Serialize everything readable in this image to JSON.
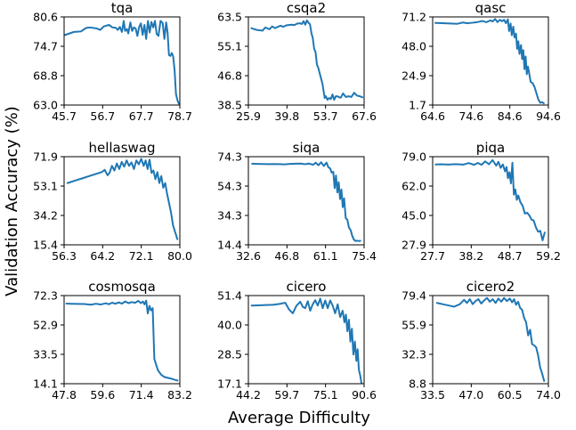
{
  "figure": {
    "xlabel": "Average Difficulty",
    "ylabel": "Validation Accuracy (%)",
    "line_color": "#1f77b4"
  },
  "chart_data": [
    {
      "type": "line",
      "title": "tqa",
      "xticks": [
        "45.7",
        "56.7",
        "67.7",
        "78.7"
      ],
      "xlim": [
        45.7,
        78.7
      ],
      "yticks": [
        "63.0",
        "68.8",
        "74.7",
        "80.6"
      ],
      "ylim": [
        63.0,
        80.6
      ],
      "x": [
        46.0,
        48.5,
        50.5,
        52.0,
        53.0,
        54.0,
        55.0,
        56.0,
        57.0,
        58.5,
        59.5,
        60.5,
        61.0,
        61.6,
        62.2,
        62.7,
        63.1,
        63.6,
        64.0,
        64.6,
        65.1,
        65.6,
        66.1,
        66.6,
        67.1,
        67.6,
        68.1,
        68.6,
        69.1,
        69.6,
        70.1,
        70.6,
        71.1,
        71.6,
        72.1,
        72.6,
        73.2,
        73.8,
        74.3,
        74.8,
        75.2,
        75.6,
        76.0,
        76.4,
        76.8,
        77.2,
        77.6,
        78.0,
        78.4
      ],
      "y": [
        77.0,
        77.6,
        77.7,
        78.4,
        78.5,
        78.4,
        78.3,
        78.0,
        78.7,
        79.0,
        78.5,
        78.4,
        78.0,
        78.6,
        77.6,
        79.8,
        77.8,
        78.2,
        77.3,
        79.5,
        77.8,
        78.5,
        78.3,
        76.8,
        78.6,
        79.3,
        77.0,
        79.0,
        76.2,
        79.8,
        77.5,
        79.6,
        78.5,
        79.8,
        77.2,
        76.8,
        79.8,
        79.4,
        76.2,
        79.5,
        77.5,
        73.0,
        72.8,
        73.4,
        72.7,
        70.0,
        65.2,
        64.0,
        63.3
      ]
    },
    {
      "type": "line",
      "title": "csqa2",
      "xticks": [
        "25.9",
        "39.8",
        "53.7",
        "67.6"
      ],
      "xlim": [
        25.9,
        67.6
      ],
      "yticks": [
        "38.5",
        "46.8",
        "55.1",
        "63.5"
      ],
      "ylim": [
        38.5,
        63.5
      ],
      "x": [
        27.0,
        29.0,
        31.0,
        32.0,
        33.5,
        34.5,
        35.5,
        36.5,
        37.5,
        38.5,
        39.5,
        40.5,
        41.5,
        42.5,
        43.5,
        44.5,
        45.2,
        45.8,
        46.4,
        47.0,
        47.6,
        48.1,
        48.6,
        49.1,
        49.6,
        50.1,
        50.6,
        51.1,
        51.6,
        52.1,
        52.6,
        53.0,
        53.4,
        53.8,
        54.4,
        55.0,
        55.6,
        56.2,
        56.8,
        57.4,
        58.0,
        58.6,
        59.2,
        60.0,
        61.0,
        62.0,
        63.0,
        64.0,
        65.0,
        66.0,
        67.0
      ],
      "y": [
        60.3,
        59.8,
        59.6,
        60.5,
        60.0,
        60.8,
        60.3,
        60.7,
        61.0,
        60.7,
        61.1,
        61.2,
        61.3,
        61.2,
        61.6,
        61.7,
        61.5,
        62.3,
        61.3,
        62.5,
        61.8,
        61.4,
        59.0,
        57.5,
        54.5,
        53.5,
        50.0,
        49.0,
        47.5,
        46.0,
        44.5,
        42.5,
        40.5,
        41.0,
        40.0,
        40.5,
        40.2,
        41.5,
        40.0,
        41.0,
        41.0,
        40.7,
        40.6,
        41.8,
        40.8,
        41.0,
        40.8,
        42.0,
        41.2,
        41.0,
        40.7
      ]
    },
    {
      "type": "line",
      "title": "qasc",
      "xticks": [
        "64.6",
        "74.6",
        "84.6",
        "94.6"
      ],
      "xlim": [
        64.6,
        94.6
      ],
      "yticks": [
        "1.7",
        "24.9",
        "48.0",
        "71.2"
      ],
      "ylim": [
        1.7,
        71.2
      ],
      "x": [
        65.3,
        67.0,
        69.0,
        71.0,
        72.5,
        73.5,
        74.5,
        75.5,
        76.5,
        77.5,
        78.5,
        79.5,
        80.2,
        80.8,
        81.4,
        82.0,
        82.6,
        83.1,
        83.6,
        84.1,
        84.4,
        84.8,
        85.1,
        85.5,
        85.8,
        86.2,
        86.5,
        86.8,
        87.1,
        87.5,
        87.8,
        88.1,
        88.4,
        88.7,
        89.0,
        89.3,
        89.6,
        90.0,
        90.5,
        91.0,
        91.5,
        92.0,
        92.5,
        93.0,
        93.4
      ],
      "y": [
        66.5,
        66.3,
        66.0,
        65.8,
        66.8,
        66.2,
        66.5,
        66.8,
        67.3,
        68.0,
        67.0,
        68.4,
        67.7,
        69.6,
        67.1,
        68.9,
        67.8,
        69.0,
        66.2,
        69.3,
        60.0,
        66.0,
        56.8,
        63.5,
        55.0,
        58.0,
        46.0,
        52.0,
        42.0,
        49.0,
        38.0,
        45.0,
        30.0,
        40.0,
        26.0,
        32.0,
        27.0,
        20.0,
        19.0,
        16.0,
        11.0,
        6.0,
        3.5,
        4.0,
        3.0
      ]
    },
    {
      "type": "line",
      "title": "hellaswag",
      "xticks": [
        "56.3",
        "64.2",
        "72.1",
        "80.0"
      ],
      "xlim": [
        56.3,
        80.0
      ],
      "yticks": [
        "15.4",
        "34.2",
        "53.1",
        "71.9"
      ],
      "ylim": [
        15.4,
        71.9
      ],
      "x": [
        57.0,
        58.5,
        60.0,
        61.5,
        63.0,
        64.0,
        64.6,
        65.2,
        65.6,
        66.1,
        66.6,
        67.1,
        67.6,
        68.1,
        68.6,
        69.1,
        69.6,
        70.1,
        70.6,
        71.1,
        71.6,
        72.1,
        72.6,
        73.0,
        73.4,
        73.8,
        74.2,
        74.6,
        75.0,
        75.4,
        75.8,
        76.2,
        76.6,
        77.0,
        77.4,
        77.8,
        78.2,
        78.6,
        79.0,
        79.5
      ],
      "y": [
        55.0,
        56.5,
        58.0,
        59.5,
        61.0,
        62.0,
        63.5,
        60.0,
        61.5,
        66.0,
        63.0,
        67.5,
        64.0,
        68.5,
        65.5,
        69.5,
        66.0,
        68.2,
        64.0,
        69.5,
        67.0,
        70.5,
        66.0,
        69.5,
        64.0,
        70.0,
        61.5,
        63.0,
        57.5,
        62.0,
        55.0,
        59.5,
        52.0,
        55.0,
        48.0,
        42.0,
        36.0,
        28.0,
        24.0,
        19.0
      ]
    },
    {
      "type": "line",
      "title": "siqa",
      "xticks": [
        "32.6",
        "46.8",
        "61.1",
        "75.4"
      ],
      "xlim": [
        32.6,
        75.4
      ],
      "yticks": [
        "14.4",
        "34.3",
        "54.3",
        "74.3"
      ],
      "ylim": [
        14.4,
        74.3
      ],
      "x": [
        34.0,
        36.0,
        38.0,
        40.0,
        42.0,
        44.0,
        46.0,
        48.0,
        50.0,
        52.0,
        53.5,
        55.0,
        56.5,
        57.5,
        58.5,
        59.5,
        60.5,
        61.5,
        62.2,
        62.8,
        63.4,
        64.0,
        64.5,
        65.0,
        65.5,
        66.0,
        66.5,
        67.0,
        67.5,
        68.0,
        68.6,
        69.2,
        69.8,
        70.4,
        71.0,
        71.6,
        72.2,
        72.8,
        73.4,
        74.0
      ],
      "y": [
        69.5,
        69.4,
        69.3,
        69.2,
        69.3,
        69.2,
        69.1,
        69.4,
        69.5,
        69.6,
        69.2,
        69.6,
        68.8,
        70.2,
        68.5,
        70.5,
        68.0,
        70.3,
        67.0,
        66.5,
        63.5,
        64.0,
        53.0,
        61.5,
        50.0,
        57.0,
        45.5,
        52.0,
        40.0,
        46.0,
        32.5,
        31.5,
        26.0,
        24.5,
        20.5,
        18.0,
        17.0,
        17.2,
        17.0,
        17.1
      ]
    },
    {
      "type": "line",
      "title": "piqa",
      "xticks": [
        "27.7",
        "38.2",
        "48.7",
        "59.2"
      ],
      "xlim": [
        27.7,
        59.2
      ],
      "yticks": [
        "27.9",
        "45.0",
        "62.0",
        "79.0"
      ],
      "ylim": [
        27.9,
        79.0
      ],
      "x": [
        28.5,
        30.0,
        32.0,
        34.0,
        36.0,
        37.5,
        39.0,
        40.0,
        41.0,
        42.0,
        43.0,
        44.0,
        45.0,
        45.6,
        46.2,
        46.8,
        47.4,
        47.8,
        48.2,
        48.6,
        49.0,
        49.4,
        49.8,
        50.2,
        50.6,
        51.0,
        51.6,
        52.2,
        52.8,
        53.4,
        54.0,
        54.6,
        55.2,
        55.8,
        56.4,
        57.0,
        57.6,
        58.2
      ],
      "y": [
        74.5,
        74.6,
        74.4,
        74.7,
        74.4,
        75.3,
        74.3,
        75.4,
        74.3,
        76.3,
        74.6,
        77.0,
        73.8,
        76.0,
        72.5,
        74.5,
        70.5,
        73.0,
        66.5,
        70.0,
        63.5,
        75.5,
        57.0,
        60.0,
        54.0,
        56.5,
        52.5,
        50.5,
        46.0,
        46.5,
        45.0,
        42.5,
        42.0,
        38.0,
        35.5,
        36.0,
        30.5,
        35.0
      ]
    },
    {
      "type": "line",
      "title": "cosmosqa",
      "xticks": [
        "47.8",
        "59.6",
        "71.4",
        "83.2"
      ],
      "xlim": [
        47.8,
        83.2
      ],
      "yticks": [
        "14.1",
        "33.5",
        "52.9",
        "72.3"
      ],
      "ylim": [
        14.1,
        72.3
      ],
      "x": [
        48.5,
        50.0,
        52.0,
        54.0,
        56.0,
        57.5,
        59.0,
        60.5,
        61.5,
        62.5,
        63.5,
        64.5,
        65.5,
        66.5,
        67.5,
        68.5,
        69.5,
        70.5,
        71.3,
        71.9,
        72.4,
        72.9,
        73.4,
        73.9,
        74.4,
        74.9,
        75.4,
        75.9,
        76.5,
        77.5,
        78.5,
        79.5,
        80.5,
        81.5,
        82.5
      ],
      "y": [
        67.0,
        66.9,
        66.8,
        66.7,
        66.3,
        66.9,
        66.4,
        67.2,
        66.6,
        67.6,
        66.9,
        67.8,
        67.0,
        68.4,
        67.3,
        68.0,
        67.5,
        68.8,
        67.3,
        68.4,
        66.5,
        69.0,
        60.5,
        65.5,
        62.5,
        64.0,
        30.5,
        27.0,
        23.0,
        20.0,
        18.5,
        18.0,
        17.5,
        16.8,
        16.2
      ]
    },
    {
      "type": "line",
      "title": "cicero",
      "xticks": [
        "44.2",
        "59.7",
        "75.1",
        "90.6"
      ],
      "xlim": [
        44.2,
        90.6
      ],
      "yticks": [
        "17.1",
        "28.5",
        "40.0",
        "51.4"
      ],
      "ylim": [
        17.1,
        51.4
      ],
      "x": [
        45.5,
        48.0,
        51.0,
        54.0,
        57.0,
        59.0,
        60.5,
        62.0,
        63.5,
        65.0,
        66.0,
        67.0,
        68.0,
        69.0,
        70.0,
        71.0,
        72.0,
        73.0,
        74.0,
        75.0,
        76.0,
        77.0,
        78.0,
        79.0,
        80.0,
        81.0,
        82.0,
        82.7,
        83.3,
        83.9,
        84.5,
        85.1,
        85.7,
        86.3,
        86.9,
        87.5,
        88.0,
        88.5,
        89.0,
        89.5
      ],
      "y": [
        47.5,
        47.6,
        47.7,
        47.8,
        48.2,
        48.6,
        46.0,
        44.5,
        47.5,
        49.0,
        47.0,
        46.5,
        49.2,
        45.5,
        48.0,
        49.6,
        47.5,
        50.2,
        46.5,
        49.5,
        46.5,
        49.5,
        47.5,
        44.5,
        48.0,
        43.0,
        45.5,
        41.0,
        44.0,
        37.5,
        42.0,
        33.5,
        38.5,
        28.5,
        33.5,
        26.0,
        30.5,
        22.5,
        20.5,
        17.5
      ]
    },
    {
      "type": "line",
      "title": "cicero2",
      "xticks": [
        "33.5",
        "47.0",
        "60.5",
        "74.0"
      ],
      "xlim": [
        33.5,
        74.0
      ],
      "yticks": [
        "8.8",
        "32.3",
        "55.9",
        "79.4"
      ],
      "ylim": [
        8.8,
        79.4
      ],
      "x": [
        35.0,
        37.0,
        39.0,
        41.0,
        43.0,
        44.5,
        45.5,
        46.5,
        47.5,
        48.5,
        49.5,
        50.5,
        51.5,
        52.5,
        53.5,
        54.5,
        55.5,
        56.5,
        57.5,
        58.5,
        59.5,
        60.5,
        61.3,
        62.0,
        62.7,
        63.4,
        64.1,
        64.8,
        65.5,
        66.2,
        66.9,
        67.6,
        68.3,
        69.0,
        69.7,
        70.4,
        71.1,
        71.8,
        72.5
      ],
      "y": [
        73.5,
        72.5,
        71.5,
        70.5,
        72.5,
        76.0,
        73.5,
        76.5,
        72.5,
        75.0,
        76.5,
        73.0,
        75.5,
        77.5,
        74.5,
        76.5,
        73.5,
        77.0,
        74.5,
        77.5,
        75.0,
        77.0,
        74.0,
        76.5,
        72.0,
        74.5,
        69.5,
        68.0,
        61.5,
        58.0,
        47.5,
        52.0,
        40.5,
        39.5,
        38.0,
        31.5,
        22.0,
        17.0,
        11.0
      ]
    }
  ]
}
